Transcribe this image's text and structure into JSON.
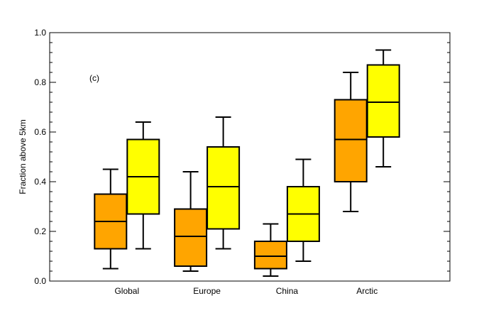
{
  "chart_data": {
    "type": "box",
    "panel_label": "(c)",
    "ylabel": "Fraction above 5km",
    "xlabel": "",
    "ylim": [
      0.0,
      1.0
    ],
    "yticks": [
      "0.0",
      "0.2",
      "0.4",
      "0.6",
      "0.8",
      "1.0"
    ],
    "categories": [
      "Global",
      "Europe",
      "China",
      "Arctic"
    ],
    "grid": false,
    "series": [
      {
        "color": "#FFA500",
        "boxes": [
          {
            "whisker_low": 0.05,
            "q1": 0.13,
            "median": 0.24,
            "q3": 0.35,
            "whisker_high": 0.45
          },
          {
            "whisker_low": 0.04,
            "q1": 0.06,
            "median": 0.18,
            "q3": 0.29,
            "whisker_high": 0.44
          },
          {
            "whisker_low": 0.02,
            "q1": 0.05,
            "median": 0.1,
            "q3": 0.16,
            "whisker_high": 0.23
          },
          {
            "whisker_low": 0.28,
            "q1": 0.4,
            "median": 0.57,
            "q3": 0.73,
            "whisker_high": 0.84
          }
        ]
      },
      {
        "color": "#FFFF00",
        "boxes": [
          {
            "whisker_low": 0.13,
            "q1": 0.27,
            "median": 0.42,
            "q3": 0.57,
            "whisker_high": 0.64
          },
          {
            "whisker_low": 0.13,
            "q1": 0.21,
            "median": 0.38,
            "q3": 0.54,
            "whisker_high": 0.66
          },
          {
            "whisker_low": 0.08,
            "q1": 0.16,
            "median": 0.27,
            "q3": 0.38,
            "whisker_high": 0.49
          },
          {
            "whisker_low": 0.46,
            "q1": 0.58,
            "median": 0.72,
            "q3": 0.87,
            "whisker_high": 0.93
          }
        ]
      }
    ]
  }
}
